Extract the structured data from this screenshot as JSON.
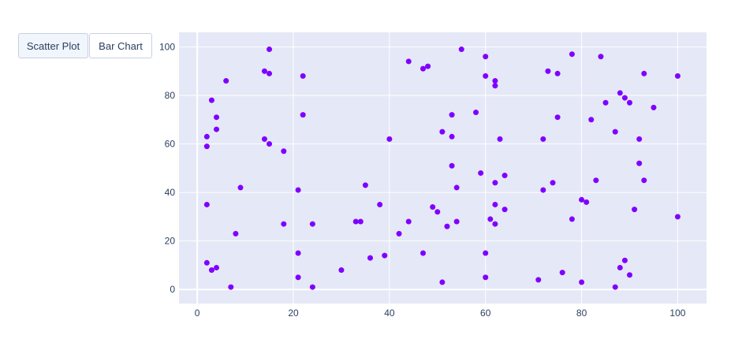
{
  "buttons": [
    {
      "label": "Scatter Plot",
      "active": true
    },
    {
      "label": "Bar Chart",
      "active": false
    }
  ],
  "chart_data": {
    "type": "scatter",
    "title": "",
    "xlabel": "",
    "ylabel": "",
    "xlim": [
      -3.8,
      106
    ],
    "ylim": [
      -5.8,
      106
    ],
    "xticks": [
      0,
      20,
      40,
      60,
      80,
      100
    ],
    "yticks": [
      0,
      20,
      40,
      60,
      80,
      100
    ],
    "grid": true,
    "colors": {
      "marker": "#7f00ff",
      "plot_bg": "#e5e8f6",
      "grid": "#ffffff"
    },
    "points": [
      [
        2,
        11
      ],
      [
        3,
        8
      ],
      [
        4,
        9
      ],
      [
        7,
        1
      ],
      [
        8,
        23
      ],
      [
        9,
        42
      ],
      [
        2,
        35
      ],
      [
        2,
        59
      ],
      [
        2,
        63
      ],
      [
        4,
        66
      ],
      [
        4,
        71
      ],
      [
        3,
        78
      ],
      [
        6,
        86
      ],
      [
        14,
        90
      ],
      [
        15,
        89
      ],
      [
        15,
        99
      ],
      [
        14,
        62
      ],
      [
        15,
        60
      ],
      [
        18,
        57
      ],
      [
        18,
        27
      ],
      [
        21,
        41
      ],
      [
        21,
        15
      ],
      [
        21,
        5
      ],
      [
        22,
        88
      ],
      [
        22,
        72
      ],
      [
        24,
        27
      ],
      [
        24,
        1
      ],
      [
        30,
        8
      ],
      [
        33,
        28
      ],
      [
        34,
        28
      ],
      [
        35,
        43
      ],
      [
        36,
        13
      ],
      [
        38,
        35
      ],
      [
        39,
        14
      ],
      [
        40,
        62
      ],
      [
        42,
        23
      ],
      [
        44,
        28
      ],
      [
        44,
        94
      ],
      [
        47,
        91
      ],
      [
        48,
        92
      ],
      [
        47,
        15
      ],
      [
        49,
        34
      ],
      [
        50,
        32
      ],
      [
        51,
        65
      ],
      [
        51,
        3
      ],
      [
        52,
        26
      ],
      [
        53,
        72
      ],
      [
        53,
        63
      ],
      [
        53,
        51
      ],
      [
        54,
        42
      ],
      [
        54,
        28
      ],
      [
        55,
        99
      ],
      [
        58,
        73
      ],
      [
        59,
        48
      ],
      [
        60,
        96
      ],
      [
        60,
        88
      ],
      [
        60,
        15
      ],
      [
        60,
        5
      ],
      [
        61,
        29
      ],
      [
        62,
        86
      ],
      [
        62,
        84
      ],
      [
        62,
        44
      ],
      [
        62,
        35
      ],
      [
        62,
        27
      ],
      [
        63,
        62
      ],
      [
        64,
        47
      ],
      [
        64,
        33
      ],
      [
        71,
        4
      ],
      [
        72,
        62
      ],
      [
        72,
        41
      ],
      [
        73,
        90
      ],
      [
        74,
        44
      ],
      [
        75,
        89
      ],
      [
        75,
        71
      ],
      [
        76,
        7
      ],
      [
        78,
        97
      ],
      [
        78,
        29
      ],
      [
        80,
        37
      ],
      [
        80,
        3
      ],
      [
        81,
        36
      ],
      [
        82,
        70
      ],
      [
        83,
        45
      ],
      [
        84,
        96
      ],
      [
        85,
        77
      ],
      [
        87,
        65
      ],
      [
        87,
        1
      ],
      [
        88,
        81
      ],
      [
        88,
        9
      ],
      [
        89,
        79
      ],
      [
        89,
        12
      ],
      [
        90,
        77
      ],
      [
        90,
        6
      ],
      [
        91,
        33
      ],
      [
        92,
        62
      ],
      [
        92,
        52
      ],
      [
        93,
        89
      ],
      [
        93,
        45
      ],
      [
        95,
        75
      ],
      [
        100,
        88
      ],
      [
        100,
        30
      ]
    ]
  }
}
